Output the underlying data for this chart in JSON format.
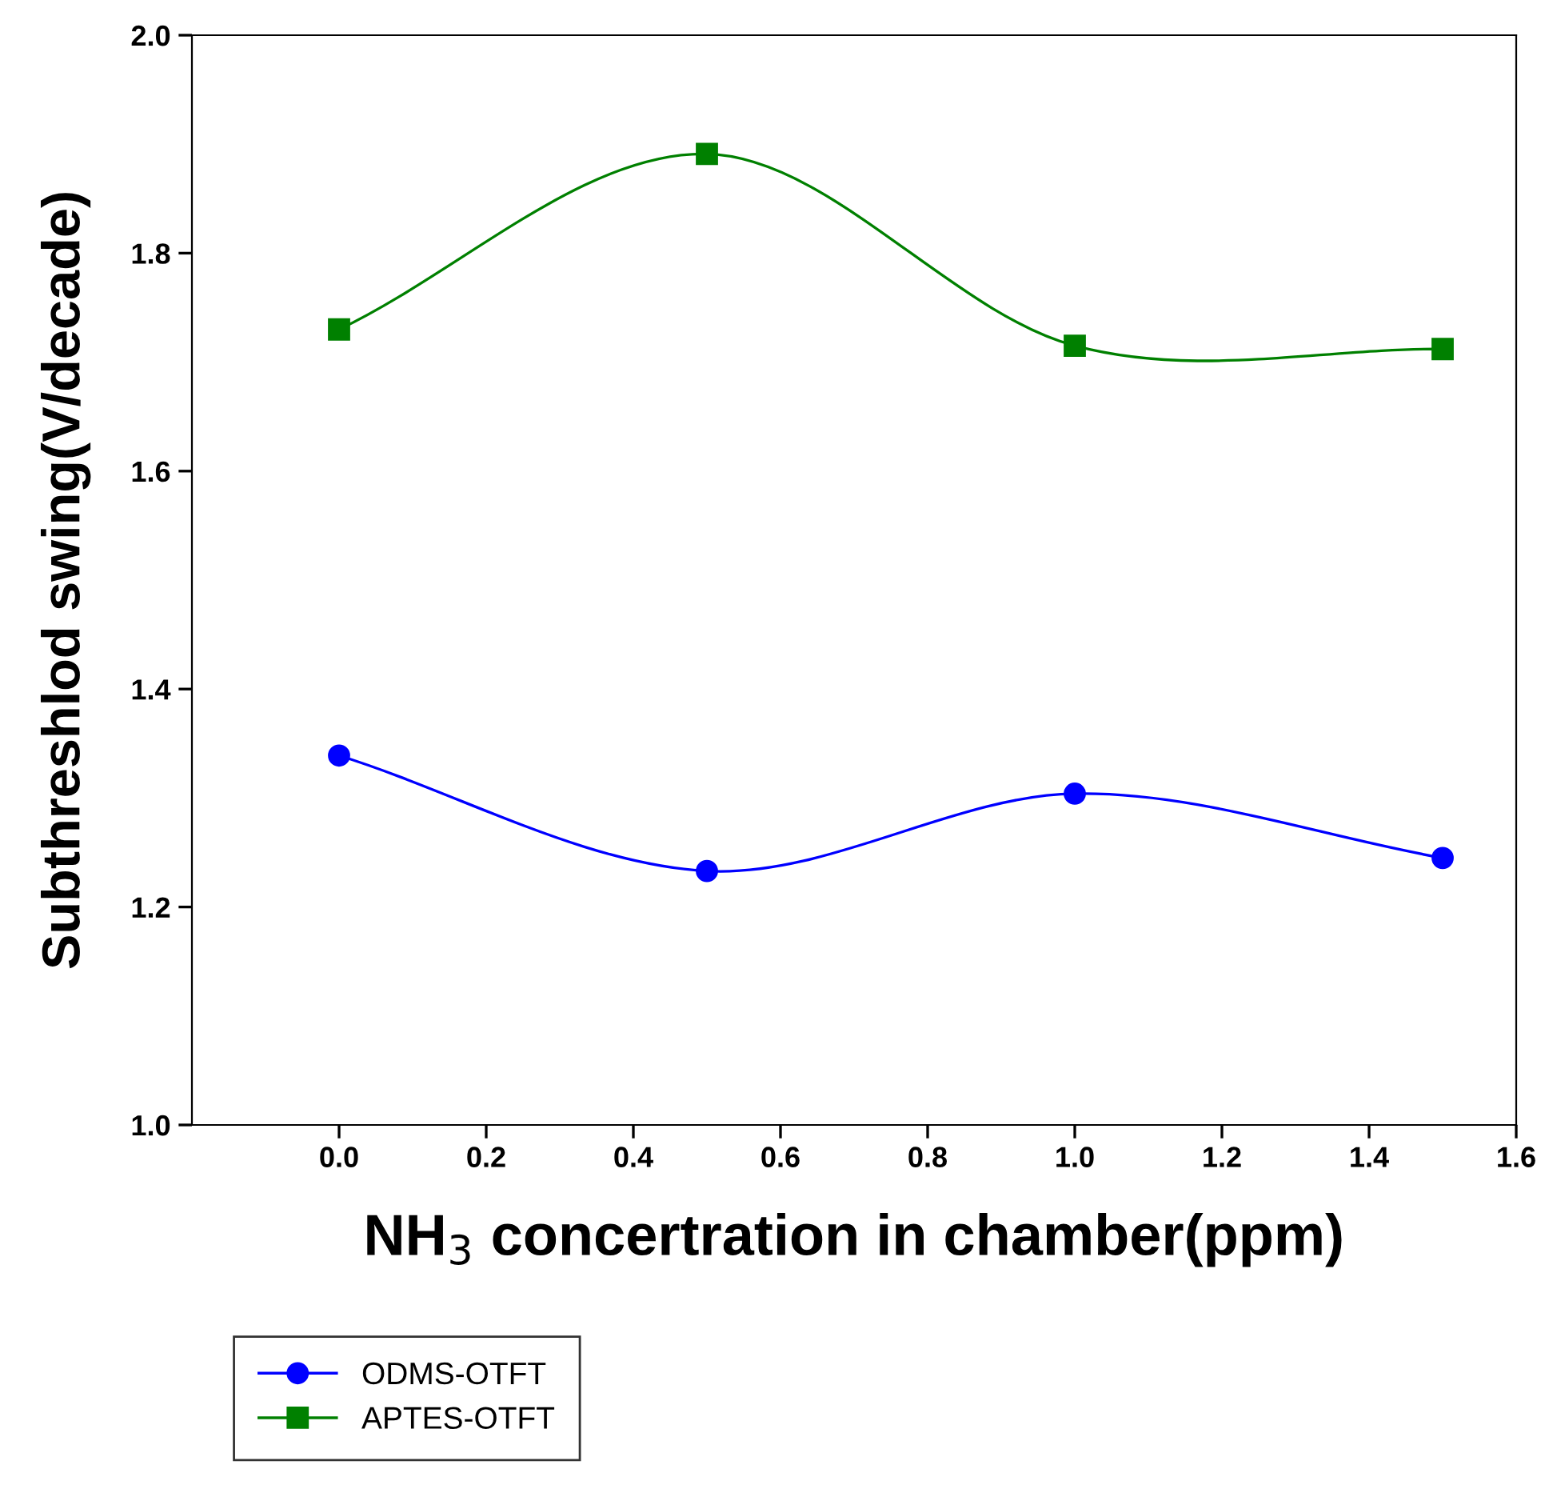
{
  "chart_data": {
    "type": "line",
    "xlabel": "NH$_{3}$ concertration in chamber(ppm)",
    "ylabel": "Subthreshlod swing(V/decade)",
    "x": [
      0,
      0.5,
      1.0,
      1.5
    ],
    "series": [
      {
        "name": "ODMS-OTFT",
        "color": "#0000ff",
        "marker": "circle",
        "values": [
          1.339,
          1.233,
          1.304,
          1.245
        ]
      },
      {
        "name": "APTES-OTFT",
        "color": "#008000",
        "marker": "square",
        "values": [
          1.73,
          1.891,
          1.715,
          1.712
        ]
      }
    ],
    "xlim": [
      -0.2,
      1.6
    ],
    "xticks": [
      {
        "value": 0,
        "label": "0.0"
      },
      {
        "value": 0.2,
        "label": "0.2"
      },
      {
        "value": 0.4,
        "label": "0.4"
      },
      {
        "value": 0.6,
        "label": "0.6"
      },
      {
        "value": 0.8,
        "label": "0.8"
      },
      {
        "value": 1.0,
        "label": "1.0"
      },
      {
        "value": 1.2,
        "label": "1.2"
      },
      {
        "value": 1.4,
        "label": "1.4"
      },
      {
        "value": 1.6,
        "label": "1.6"
      }
    ],
    "ylim": [
      1.0,
      2.0
    ],
    "yticks": [
      {
        "value": 1.0,
        "label": "1.0"
      },
      {
        "value": 1.2,
        "label": "1.2"
      },
      {
        "value": 1.4,
        "label": "1.4"
      },
      {
        "value": 1.6,
        "label": "1.6"
      },
      {
        "value": 1.8,
        "label": "1.8"
      },
      {
        "value": 2.0,
        "label": "2.0"
      }
    ],
    "grid": false,
    "legend": "bottom left",
    "line_style": "solid"
  }
}
